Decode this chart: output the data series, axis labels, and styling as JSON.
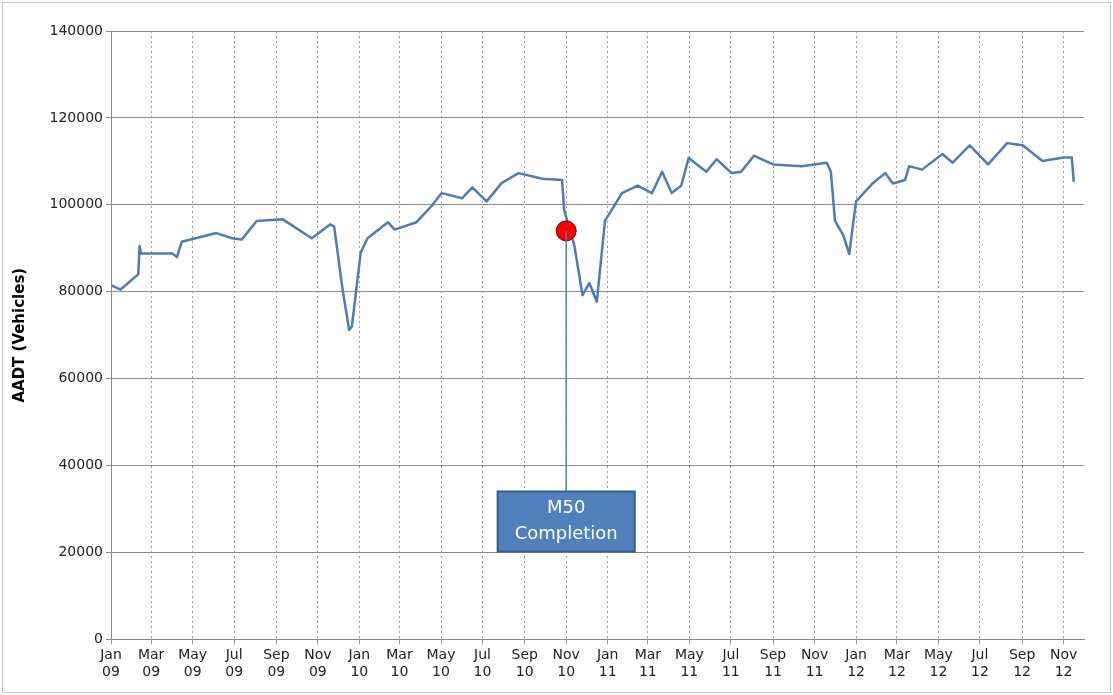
{
  "chart_data": {
    "type": "line",
    "ylabel": "AADT (Vehicles)",
    "xlim": [
      "2009-01-01",
      "2012-12-01"
    ],
    "xticks": [
      {
        "value": "2009-01-01",
        "label": "Jan 09"
      },
      {
        "value": "2009-03-01",
        "label": "Mar 09"
      },
      {
        "value": "2009-05-01",
        "label": "May 09"
      },
      {
        "value": "2009-07-01",
        "label": "Jul 09"
      },
      {
        "value": "2009-09-01",
        "label": "Sep 09"
      },
      {
        "value": "2009-11-01",
        "label": "Nov 09"
      },
      {
        "value": "2010-01-01",
        "label": "Jan 10"
      },
      {
        "value": "2010-03-01",
        "label": "Mar 10"
      },
      {
        "value": "2010-05-01",
        "label": "May 10"
      },
      {
        "value": "2010-07-01",
        "label": "Jul 10"
      },
      {
        "value": "2010-09-01",
        "label": "Sep 10"
      },
      {
        "value": "2010-11-01",
        "label": "Nov 10"
      },
      {
        "value": "2011-01-01",
        "label": "Jan 11"
      },
      {
        "value": "2011-03-01",
        "label": "Mar 11"
      },
      {
        "value": "2011-05-01",
        "label": "May 11"
      },
      {
        "value": "2011-07-01",
        "label": "Jul 11"
      },
      {
        "value": "2011-09-01",
        "label": "Sep 11"
      },
      {
        "value": "2011-11-01",
        "label": "Nov 11"
      },
      {
        "value": "2012-01-01",
        "label": "Jan 12"
      },
      {
        "value": "2012-03-01",
        "label": "Mar 12"
      },
      {
        "value": "2012-05-01",
        "label": "May 12"
      },
      {
        "value": "2012-07-01",
        "label": "Jul 12"
      },
      {
        "value": "2012-09-01",
        "label": "Sep 12"
      },
      {
        "value": "2012-11-01",
        "label": "Nov 12"
      }
    ],
    "ylim": [
      0,
      140000
    ],
    "yticks": [
      0,
      20000,
      40000,
      60000,
      80000,
      100000,
      120000,
      140000
    ],
    "grid": true,
    "legend": false,
    "series": [
      {
        "color": "#4a7ebb",
        "marker": "none",
        "x": [
          "2009-01-01",
          "2009-01-15",
          "2009-02-10",
          "2009-02-12",
          "2009-02-14",
          "2009-04-01",
          "2009-04-08",
          "2009-04-15",
          "2009-06-05",
          "2009-06-28",
          "2009-07-12",
          "2009-08-03",
          "2009-09-10",
          "2009-10-23",
          "2009-11-19",
          "2009-11-25",
          "2009-12-07",
          "2009-12-17",
          "2009-12-21",
          "2010-01-03",
          "2010-01-13",
          "2010-02-12",
          "2010-02-22",
          "2010-03-26",
          "2010-04-17",
          "2010-05-02",
          "2010-06-01",
          "2010-06-16",
          "2010-07-07",
          "2010-07-29",
          "2010-08-23",
          "2010-09-27",
          "2010-10-26",
          "2010-10-29",
          "2010-11-13",
          "2010-11-25",
          "2010-12-05",
          "2010-12-16",
          "2010-12-28",
          "2011-01-22",
          "2011-02-14",
          "2011-03-07",
          "2011-03-22",
          "2011-04-05",
          "2011-04-19",
          "2011-04-30",
          "2011-05-26",
          "2011-06-10",
          "2011-07-02",
          "2011-07-16",
          "2011-08-04",
          "2011-09-01",
          "2011-10-13",
          "2011-11-19",
          "2011-11-25",
          "2011-12-01",
          "2011-12-13",
          "2011-12-22",
          "2012-01-01",
          "2012-01-25",
          "2012-02-13",
          "2012-02-24",
          "2012-03-13",
          "2012-03-19",
          "2012-04-07",
          "2012-05-07",
          "2012-05-22",
          "2012-06-16",
          "2012-07-13",
          "2012-08-10",
          "2012-09-02",
          "2012-10-01",
          "2012-11-01",
          "2012-11-13",
          "2012-11-16"
        ],
        "values": [
          81500,
          80500,
          84000,
          90500,
          88800,
          88800,
          88000,
          91500,
          93500,
          92300,
          92000,
          96300,
          96700,
          92300,
          95500,
          95000,
          80900,
          71200,
          72000,
          89000,
          92300,
          96000,
          94300,
          96000,
          99700,
          102700,
          101500,
          104000,
          100800,
          105000,
          107300,
          106000,
          105700,
          98800,
          90600,
          79200,
          82000,
          77700,
          96300,
          102700,
          104400,
          102700,
          107600,
          102700,
          104400,
          110800,
          107600,
          110500,
          107300,
          107600,
          111300,
          109300,
          108900,
          109700,
          107600,
          96300,
          93100,
          88700,
          100800,
          104900,
          107300,
          104900,
          105700,
          108900,
          108100,
          111700,
          109700,
          113700,
          109300,
          114200,
          113700,
          110100,
          110900,
          110900,
          105300
        ]
      },
      {
        "type": "scatter",
        "color": "#ff0000",
        "marker": "circle",
        "x": [
          "2010-11-01"
        ],
        "values": [
          94000
        ]
      }
    ],
    "annotations": [
      {
        "text": "M50 Completion",
        "x": "2010-11-01",
        "y": 94000
      }
    ]
  }
}
